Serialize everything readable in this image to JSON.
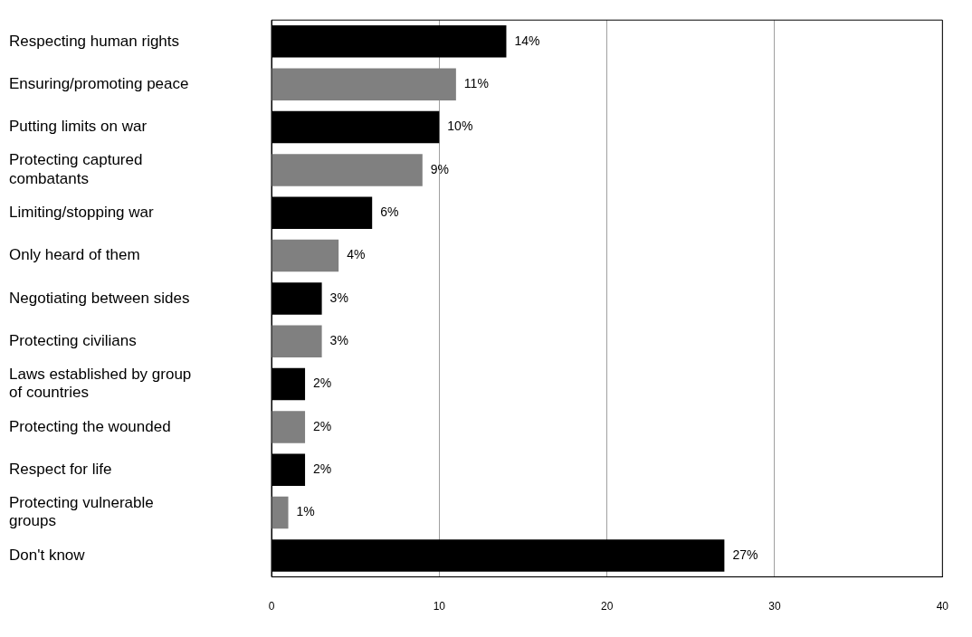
{
  "chart_data": {
    "type": "bar",
    "orientation": "horizontal",
    "categories": [
      "Respecting human rights",
      "Ensuring/promoting peace",
      "Putting limits on war",
      "Protecting captured combatants",
      "Limiting/stopping war",
      "Only heard of them",
      "Negotiating between sides",
      "Protecting civilians",
      "Laws established by group of countries",
      "Protecting the wounded",
      "Respect for life",
      "Protecting vulnerable groups",
      "Don't know"
    ],
    "values": [
      14,
      11,
      10,
      9,
      6,
      4,
      3,
      3,
      2,
      2,
      2,
      1,
      27
    ],
    "colors": [
      "#000000",
      "#808080",
      "#000000",
      "#808080",
      "#000000",
      "#808080",
      "#000000",
      "#808080",
      "#000000",
      "#808080",
      "#000000",
      "#808080",
      "#000000"
    ],
    "value_labels": [
      "14%",
      "11%",
      "10%",
      "9%",
      "6%",
      "4%",
      "3%",
      "3%",
      "2%",
      "2%",
      "2%",
      "1%",
      "27%"
    ],
    "xlim": [
      0,
      40
    ],
    "xticks": [
      0,
      10,
      20,
      30,
      40
    ],
    "grid": "x",
    "legend": false
  }
}
